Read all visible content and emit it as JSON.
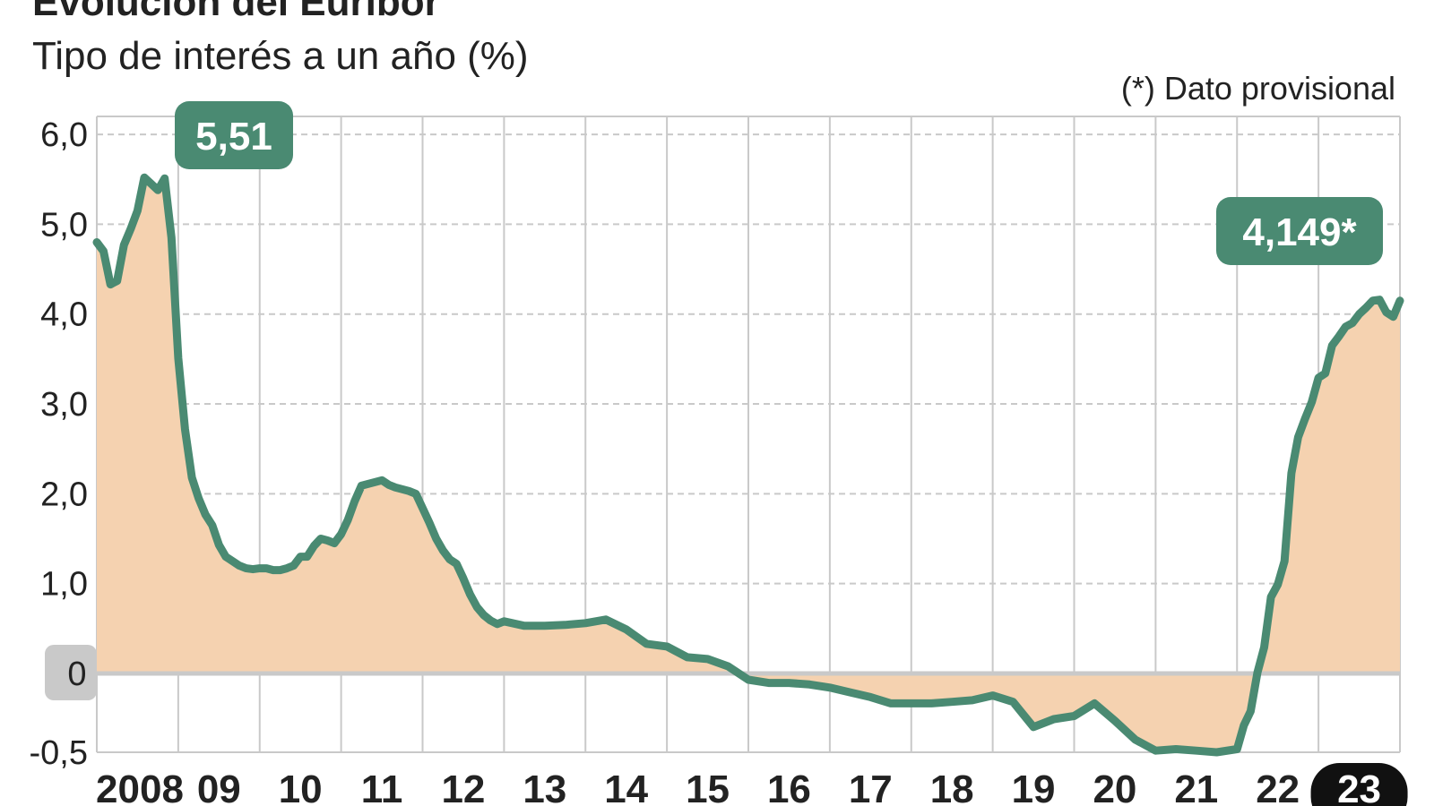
{
  "title": "Evolución del Euríbor",
  "subtitle": "Tipo de interés a un año (%)",
  "note": "(*) Dato provisional",
  "colors": {
    "line": "#4a8a72",
    "fill": "#f5d2b0",
    "callout": "#4a8a72",
    "grid": "#c9c9c9",
    "zero_label_bg": "#c9c9c9",
    "last_year_bg": "#111111"
  },
  "chart_data": {
    "type": "area",
    "title": "Evolución del Euríbor",
    "subtitle": "Tipo de interés a un año (%)",
    "note": "(*) Dato provisional",
    "xlabel": "",
    "ylabel": "",
    "xlim": [
      2008.0,
      2024.0
    ],
    "ylim": [
      -0.5,
      6.0
    ],
    "y_ticks": [
      {
        "value": -0.5,
        "label": "-0,5"
      },
      {
        "value": 0,
        "label": "0"
      },
      {
        "value": 1.0,
        "label": "1,0"
      },
      {
        "value": 2.0,
        "label": "2,0"
      },
      {
        "value": 3.0,
        "label": "3,0"
      },
      {
        "value": 4.0,
        "label": "4,0"
      },
      {
        "value": 5.0,
        "label": "5,0"
      },
      {
        "value": 6.0,
        "label": "6,0"
      }
    ],
    "x_ticks": [
      {
        "value": 2008,
        "label": "2008"
      },
      {
        "value": 2009,
        "label": "09"
      },
      {
        "value": 2010,
        "label": "10"
      },
      {
        "value": 2011,
        "label": "11"
      },
      {
        "value": 2012,
        "label": "12"
      },
      {
        "value": 2013,
        "label": "13"
      },
      {
        "value": 2014,
        "label": "14"
      },
      {
        "value": 2015,
        "label": "15"
      },
      {
        "value": 2016,
        "label": "16"
      },
      {
        "value": 2017,
        "label": "17"
      },
      {
        "value": 2018,
        "label": "18"
      },
      {
        "value": 2019,
        "label": "19"
      },
      {
        "value": 2020,
        "label": "20"
      },
      {
        "value": 2021,
        "label": "21"
      },
      {
        "value": 2022,
        "label": "22"
      },
      {
        "value": 2023,
        "label": "23",
        "highlight": true
      }
    ],
    "grid": true,
    "annotations": [
      {
        "x": 2008.83,
        "y": 5.51,
        "label": "5,51"
      },
      {
        "x": 2024.0,
        "y": 4.149,
        "label": "4,149*"
      }
    ],
    "series": [
      {
        "x": [
          2008.0,
          2008.083,
          2008.167,
          2008.25,
          2008.333,
          2008.417,
          2008.5,
          2008.583,
          2008.667,
          2008.75,
          2008.833,
          2008.917,
          2009.0,
          2009.083,
          2009.167,
          2009.25,
          2009.333,
          2009.417,
          2009.5,
          2009.583,
          2009.667,
          2009.75,
          2009.833,
          2009.917,
          2010.0,
          2010.083,
          2010.167,
          2010.25,
          2010.333,
          2010.417,
          2010.5,
          2010.583,
          2010.667,
          2010.75,
          2010.833,
          2010.917,
          2011.0,
          2011.083,
          2011.167,
          2011.25,
          2011.333,
          2011.417,
          2011.5,
          2011.583,
          2011.667,
          2011.75,
          2011.833,
          2011.917,
          2012.0,
          2012.083,
          2012.167,
          2012.25,
          2012.333,
          2012.417,
          2012.5,
          2012.583,
          2012.667,
          2012.75,
          2012.833,
          2012.917,
          2013.0,
          2013.25,
          2013.5,
          2013.75,
          2014.0,
          2014.25,
          2014.5,
          2014.75,
          2015.0,
          2015.25,
          2015.5,
          2015.75,
          2016.0,
          2016.25,
          2016.5,
          2016.75,
          2017.0,
          2017.25,
          2017.5,
          2017.75,
          2018.0,
          2018.25,
          2018.5,
          2018.75,
          2019.0,
          2019.25,
          2019.5,
          2019.75,
          2020.0,
          2020.25,
          2020.5,
          2020.75,
          2021.0,
          2021.25,
          2021.5,
          2021.75,
          2022.0,
          2022.083,
          2022.167,
          2022.25,
          2022.333,
          2022.417,
          2022.5,
          2022.583,
          2022.667,
          2022.75,
          2022.833,
          2022.917,
          2023.0,
          2023.083,
          2023.167,
          2023.25,
          2023.333,
          2023.417,
          2023.5,
          2023.583,
          2023.667,
          2023.75,
          2023.833,
          2023.917,
          2024.0
        ],
        "y": [
          4.8,
          4.7,
          4.33,
          4.37,
          4.77,
          4.95,
          5.15,
          5.52,
          5.45,
          5.38,
          5.51,
          4.85,
          3.51,
          2.72,
          2.18,
          1.95,
          1.77,
          1.65,
          1.43,
          1.3,
          1.25,
          1.2,
          1.17,
          1.16,
          1.17,
          1.17,
          1.15,
          1.15,
          1.17,
          1.2,
          1.3,
          1.3,
          1.42,
          1.5,
          1.48,
          1.45,
          1.55,
          1.71,
          1.92,
          2.09,
          2.11,
          2.13,
          2.15,
          2.1,
          2.07,
          2.05,
          2.03,
          2.0,
          1.84,
          1.68,
          1.5,
          1.37,
          1.27,
          1.22,
          1.06,
          0.88,
          0.74,
          0.65,
          0.59,
          0.55,
          0.58,
          0.53,
          0.53,
          0.54,
          0.56,
          0.6,
          0.49,
          0.33,
          0.3,
          0.18,
          0.16,
          0.08,
          -0.04,
          -0.06,
          -0.06,
          -0.07,
          -0.09,
          -0.12,
          -0.15,
          -0.19,
          -0.19,
          -0.19,
          -0.18,
          -0.17,
          -0.14,
          -0.18,
          -0.34,
          -0.29,
          -0.27,
          -0.19,
          -0.3,
          -0.42,
          -0.49,
          -0.48,
          -0.49,
          -0.5,
          -0.48,
          -0.33,
          -0.24,
          0.01,
          0.29,
          0.85,
          0.99,
          1.25,
          2.23,
          2.63,
          2.83,
          3.02,
          3.29,
          3.34,
          3.65,
          3.75,
          3.86,
          3.9,
          4.0,
          4.07,
          4.15,
          4.16,
          4.02,
          3.97,
          4.149
        ]
      }
    ]
  }
}
